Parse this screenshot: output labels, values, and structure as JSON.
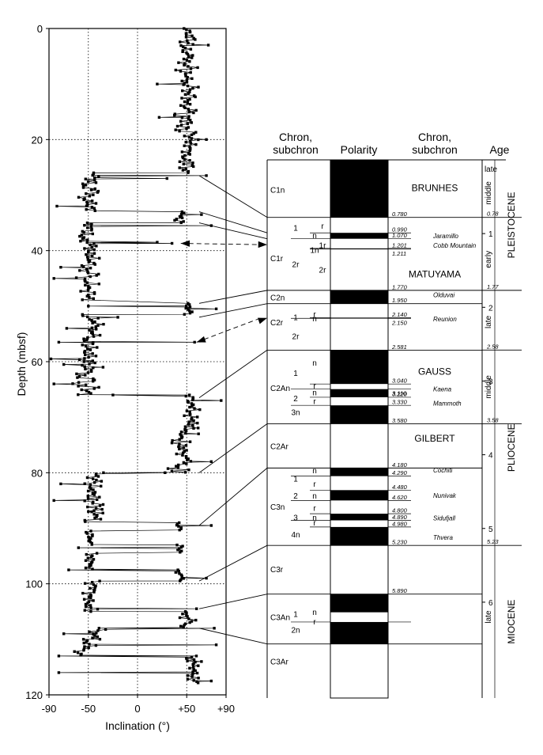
{
  "chart_data": {
    "type": "scatter",
    "xlabel": "Inclination (°)",
    "ylabel": "Depth (mbsf)",
    "xlim": [
      -90,
      90
    ],
    "ylim": [
      0,
      120
    ],
    "y_inverted": true,
    "grid": "dotted",
    "x_ticks": [
      -90,
      -50,
      0,
      50,
      90
    ],
    "x_tick_labels": [
      "-90",
      "-50",
      "0",
      "+50",
      "+90"
    ],
    "y_ticks": [
      0,
      20,
      40,
      60,
      80,
      100,
      120
    ],
    "y_tick_labels": [
      "0",
      "20",
      "40",
      "60",
      "80",
      "100",
      "120"
    ],
    "zones": [
      {
        "top": 0,
        "bottom": 26,
        "mean": 50,
        "spread": 8
      },
      {
        "top": 26,
        "bottom": 33,
        "mean": -48,
        "spread": 8
      },
      {
        "top": 33,
        "bottom": 35,
        "mean": 42,
        "spread": 5
      },
      {
        "top": 35,
        "bottom": 49,
        "mean": -50,
        "spread": 9
      },
      {
        "top": 49.5,
        "bottom": 51.5,
        "mean": 52,
        "spread": 4
      },
      {
        "top": 51.5,
        "bottom": 60,
        "mean": -47,
        "spread": 9
      },
      {
        "top": 60,
        "bottom": 66,
        "mean": -52,
        "spread": 9
      },
      {
        "top": 66,
        "bottom": 72,
        "mean": 55,
        "spread": 6
      },
      {
        "top": 72,
        "bottom": 80,
        "mean": 45,
        "spread": 10
      },
      {
        "top": 80,
        "bottom": 89,
        "mean": -45,
        "spread": 9
      },
      {
        "top": 89,
        "bottom": 90.5,
        "mean": 42,
        "spread": 5
      },
      {
        "top": 90.5,
        "bottom": 93,
        "mean": -50,
        "spread": 6
      },
      {
        "top": 93,
        "bottom": 94.5,
        "mean": 45,
        "spread": 5
      },
      {
        "top": 94.5,
        "bottom": 97.5,
        "mean": -48,
        "spread": 6
      },
      {
        "top": 97.5,
        "bottom": 99.5,
        "mean": 43,
        "spread": 6
      },
      {
        "top": 99.5,
        "bottom": 105,
        "mean": -47,
        "spread": 6
      },
      {
        "top": 105,
        "bottom": 108,
        "mean": 50,
        "spread": 6
      },
      {
        "top": 108,
        "bottom": 110,
        "mean": -40,
        "spread": 12
      },
      {
        "top": 110,
        "bottom": 113,
        "mean": -55,
        "spread": 10
      },
      {
        "top": 113,
        "bottom": 118,
        "mean": 55,
        "spread": 8
      }
    ],
    "outliers": [
      {
        "depth": 3,
        "inclination": 72
      },
      {
        "depth": 10,
        "inclination": 20
      },
      {
        "depth": 16,
        "inclination": 22
      },
      {
        "depth": 20,
        "inclination": 70
      },
      {
        "depth": 26.5,
        "inclination": 70
      },
      {
        "depth": 27,
        "inclination": 30
      },
      {
        "depth": 32,
        "inclination": -82
      },
      {
        "depth": 33.5,
        "inclination": 65
      },
      {
        "depth": 35.5,
        "inclination": 75
      },
      {
        "depth": 38.5,
        "inclination": 20
      },
      {
        "depth": 38.7,
        "inclination": 35
      },
      {
        "depth": 43,
        "inclination": -78
      },
      {
        "depth": 45,
        "inclination": -85
      },
      {
        "depth": 50,
        "inclination": -50
      },
      {
        "depth": 50.5,
        "inclination": 80
      },
      {
        "depth": 52,
        "inclination": -20
      },
      {
        "depth": 54,
        "inclination": -72
      },
      {
        "depth": 56.5,
        "inclination": 58
      },
      {
        "depth": 56.5,
        "inclination": -80
      },
      {
        "depth": 59.5,
        "inclination": -88
      },
      {
        "depth": 60.5,
        "inclination": -75
      },
      {
        "depth": 61,
        "inclination": -35
      },
      {
        "depth": 64,
        "inclination": -85
      },
      {
        "depth": 66,
        "inclination": -25
      },
      {
        "depth": 67,
        "inclination": 85
      },
      {
        "depth": 73,
        "inclination": 62
      },
      {
        "depth": 78,
        "inclination": 75
      },
      {
        "depth": 80,
        "inclination": 28
      },
      {
        "depth": 82,
        "inclination": -78
      },
      {
        "depth": 85,
        "inclination": -85
      },
      {
        "depth": 87,
        "inclination": -50
      },
      {
        "depth": 89.5,
        "inclination": 75
      },
      {
        "depth": 93.5,
        "inclination": -60
      },
      {
        "depth": 97.5,
        "inclination": -70
      },
      {
        "depth": 99,
        "inclination": 70
      },
      {
        "depth": 104.5,
        "inclination": 60
      },
      {
        "depth": 108,
        "inclination": 78
      },
      {
        "depth": 109,
        "inclination": -75
      },
      {
        "depth": 111,
        "inclination": 80
      },
      {
        "depth": 113,
        "inclination": -80
      },
      {
        "depth": 114,
        "inclination": 65
      },
      {
        "depth": 116,
        "inclination": -80
      },
      {
        "depth": 117.5,
        "inclination": 75
      }
    ],
    "arrows": [
      {
        "depth": 38.7,
        "inclination": 44,
        "target_age": 1.15
      },
      {
        "depth": 56.5,
        "inclination": 60,
        "target_age": 2.145
      }
    ]
  },
  "timescale": {
    "header_chron_left": "Chron,\nsubchron",
    "header_polarity": "Polarity",
    "header_chron_right": "Chron,\nsubchron",
    "header_age": "Age",
    "age_min": 0,
    "age_max": 7.3,
    "normal_intervals": [
      [
        0,
        0.78
      ],
      [
        0.99,
        1.07
      ],
      [
        1.201,
        1.211
      ],
      [
        1.77,
        1.95
      ],
      [
        2.14,
        2.15
      ],
      [
        2.581,
        3.04
      ],
      [
        3.11,
        3.22
      ],
      [
        3.33,
        3.58
      ],
      [
        4.18,
        4.29
      ],
      [
        4.48,
        4.62
      ],
      [
        4.8,
        4.89
      ],
      [
        4.98,
        5.23
      ],
      [
        5.89,
        6.137
      ],
      [
        6.269,
        6.567
      ]
    ],
    "chron_rows": [
      {
        "label": "C1n",
        "age": 0.4,
        "col": 0
      },
      {
        "label": "C1r",
        "age": 1.33,
        "col": 0
      },
      {
        "label": "C2n",
        "age": 1.86,
        "col": 0
      },
      {
        "label": "C2r",
        "age": 2.2,
        "col": 0
      },
      {
        "label": "C2An",
        "age": 3.09,
        "col": 0
      },
      {
        "label": "C2Ar",
        "age": 3.88,
        "col": 0
      },
      {
        "label": "C3n",
        "age": 4.7,
        "col": 0
      },
      {
        "label": "C3r",
        "age": 5.55,
        "col": 0
      },
      {
        "label": "C3An",
        "age": 6.2,
        "col": 0
      },
      {
        "label": "C3Ar",
        "age": 6.8,
        "col": 0
      }
    ],
    "sub_rows": [
      {
        "label": "1",
        "age": 0.93,
        "x": "a"
      },
      {
        "label": "r",
        "age": 0.9,
        "x": "c"
      },
      {
        "label": "n",
        "age": 1.03,
        "x": "b"
      },
      {
        "label": "1r",
        "age": 1.165,
        "x": "c"
      },
      {
        "label": "1n",
        "age": 1.23,
        "x": "b"
      },
      {
        "label": "2r",
        "age": 1.42,
        "x": "a"
      },
      {
        "label": "2r",
        "age": 1.5,
        "x": "c"
      },
      {
        "label": "1",
        "age": 2.14,
        "x": "a"
      },
      {
        "label": "r",
        "age": 2.1,
        "x": "b"
      },
      {
        "label": "n",
        "age": 2.16,
        "x": "b"
      },
      {
        "label": "2r",
        "age": 2.4,
        "x": "a"
      },
      {
        "label": "n",
        "age": 2.76,
        "x": "b"
      },
      {
        "label": "1",
        "age": 2.9,
        "x": "a"
      },
      {
        "label": "r",
        "age": 3.07,
        "x": "b"
      },
      {
        "label": "n",
        "age": 3.16,
        "x": "b"
      },
      {
        "label": "2",
        "age": 3.24,
        "x": "a"
      },
      {
        "label": "r",
        "age": 3.28,
        "x": "b"
      },
      {
        "label": "3n",
        "age": 3.43,
        "x": "a"
      },
      {
        "label": "n",
        "age": 4.22,
        "x": "b"
      },
      {
        "label": "1",
        "age": 4.33,
        "x": "a"
      },
      {
        "label": "r",
        "age": 4.4,
        "x": "b"
      },
      {
        "label": "2",
        "age": 4.56,
        "x": "a"
      },
      {
        "label": "n",
        "age": 4.56,
        "x": "b"
      },
      {
        "label": "r",
        "age": 4.73,
        "x": "b"
      },
      {
        "label": "3",
        "age": 4.86,
        "x": "a"
      },
      {
        "label": "n",
        "age": 4.86,
        "x": "b"
      },
      {
        "label": "r",
        "age": 4.93,
        "x": "b"
      },
      {
        "label": "4n",
        "age": 5.09,
        "x": "a"
      },
      {
        "label": "1",
        "age": 6.17,
        "x": "a"
      },
      {
        "label": "n",
        "age": 6.14,
        "x": "b"
      },
      {
        "label": "r",
        "age": 6.27,
        "x": "b"
      },
      {
        "label": "2n",
        "age": 6.38,
        "x": "a"
      }
    ],
    "sub_lines": [
      {
        "age": 0.99,
        "from": "mid"
      },
      {
        "age": 1.07,
        "from": "a"
      },
      {
        "age": 1.201,
        "from": "mid"
      },
      {
        "age": 1.211,
        "from": "mid"
      },
      {
        "age": 2.14,
        "from": "mid"
      },
      {
        "age": 2.15,
        "from": "a"
      },
      {
        "age": 3.04,
        "from": "mid"
      },
      {
        "age": 3.11,
        "from": "a"
      },
      {
        "age": 3.22,
        "from": "mid"
      },
      {
        "age": 3.33,
        "from": "a"
      },
      {
        "age": 4.29,
        "from": "a"
      },
      {
        "age": 4.48,
        "from": "mid"
      },
      {
        "age": 4.62,
        "from": "a"
      },
      {
        "age": 4.8,
        "from": "mid"
      },
      {
        "age": 4.89,
        "from": "a"
      },
      {
        "age": 4.98,
        "from": "mid"
      },
      {
        "age": 6.269,
        "from": "a"
      }
    ],
    "chron_boundaries": [
      0.78,
      1.77,
      1.95,
      2.581,
      3.58,
      4.18,
      5.23,
      5.89,
      6.567
    ],
    "names": [
      {
        "label": "BRUNHES",
        "age": 0.38
      },
      {
        "label": "MATUYAMA",
        "age": 1.55
      },
      {
        "label": "GAUSS",
        "age": 2.87
      },
      {
        "label": "GILBERT",
        "age": 3.78
      }
    ],
    "subchron_names": [
      {
        "label": "Jaramillo",
        "age": 1.03
      },
      {
        "label": "Cobb Mountain",
        "age": 1.16
      },
      {
        "label": "Olduvai",
        "age": 1.83
      },
      {
        "label": "Reunion",
        "age": 2.16
      },
      {
        "label": "Kaena",
        "age": 3.11
      },
      {
        "label": "Mammoth",
        "age": 3.3
      },
      {
        "label": "Cochiti",
        "age": 4.21
      },
      {
        "label": "Nunivak",
        "age": 4.55
      },
      {
        "label": "Sidufjall",
        "age": 4.86
      },
      {
        "label": "Thvera",
        "age": 5.12
      }
    ],
    "age_labels": [
      {
        "label": "0.780",
        "age": 0.78,
        "pos": "above"
      },
      {
        "label": "0.990",
        "age": 0.99,
        "pos": "above"
      },
      {
        "label": "1.070",
        "age": 1.07,
        "pos": "above"
      },
      {
        "label": "1.201",
        "age": 1.201,
        "pos": "above"
      },
      {
        "label": "1.211",
        "age": 1.211,
        "pos": "below"
      },
      {
        "label": "1.770",
        "age": 1.77,
        "pos": "above"
      },
      {
        "label": "1.950",
        "age": 1.95,
        "pos": "above"
      },
      {
        "label": "2.140",
        "age": 2.14,
        "pos": "above"
      },
      {
        "label": "2.150",
        "age": 2.15,
        "pos": "below"
      },
      {
        "label": "2.581",
        "age": 2.581,
        "pos": "above"
      },
      {
        "label": "3.040",
        "age": 3.04,
        "pos": "above"
      },
      {
        "label": "3.110",
        "age": 3.11,
        "pos": "below"
      },
      {
        "label": "3.220",
        "age": 3.22,
        "pos": "above"
      },
      {
        "label": "3.330",
        "age": 3.33,
        "pos": "above"
      },
      {
        "label": "3.580",
        "age": 3.58,
        "pos": "above"
      },
      {
        "label": "4.180",
        "age": 4.18,
        "pos": "above"
      },
      {
        "label": "4.290",
        "age": 4.29,
        "pos": "above"
      },
      {
        "label": "4.480",
        "age": 4.48,
        "pos": "above"
      },
      {
        "label": "4.620",
        "age": 4.62,
        "pos": "above"
      },
      {
        "label": "4.800",
        "age": 4.8,
        "pos": "above"
      },
      {
        "label": "4.890",
        "age": 4.89,
        "pos": "above"
      },
      {
        "label": "4.980",
        "age": 4.98,
        "pos": "above"
      },
      {
        "label": "5.230",
        "age": 5.23,
        "pos": "above"
      },
      {
        "label": "5.890",
        "age": 5.89,
        "pos": "above"
      }
    ],
    "age_ticks": [
      {
        "label": "1",
        "age": 1
      },
      {
        "label": "2",
        "age": 2
      },
      {
        "label": "3",
        "age": 3
      },
      {
        "label": "4",
        "age": 4
      },
      {
        "label": "5",
        "age": 5
      },
      {
        "label": "6",
        "age": 6
      }
    ],
    "age_bounds": [
      {
        "label": "0.78",
        "age": 0.78
      },
      {
        "label": "1.77",
        "age": 1.77
      },
      {
        "label": "2.58",
        "age": 2.58
      },
      {
        "label": "3.58",
        "age": 3.58
      },
      {
        "label": "5.23",
        "age": 5.23
      }
    ],
    "subepochs": [
      {
        "label": "late",
        "age": 0.12
      },
      {
        "label": "middle",
        "age": 0.45
      },
      {
        "label": "early",
        "age": 1.35
      },
      {
        "label": "late",
        "age": 2.2
      },
      {
        "label": "middle",
        "age": 3.08
      },
      {
        "label": "late",
        "age": 6.2
      }
    ],
    "epochs": [
      {
        "label": "PLEISTOCENE",
        "age_top": 0,
        "age_bottom": 1.77
      },
      {
        "label": "PLIOCENE",
        "age_top": 2.58,
        "age_bottom": 5.23
      },
      {
        "label": "MIOCENE",
        "age_top": 5.23,
        "age_bottom": 7.3
      }
    ],
    "ties": [
      {
        "depth": 26.5,
        "age": 0.78
      },
      {
        "depth": 33,
        "age": 0.99
      },
      {
        "depth": 35,
        "age": 1.07
      },
      {
        "depth": 49.5,
        "age": 1.77
      },
      {
        "depth": 52,
        "age": 1.95
      },
      {
        "depth": 66.5,
        "age": 2.581
      },
      {
        "depth": 80,
        "age": 3.58
      },
      {
        "depth": 89.5,
        "age": 4.18
      },
      {
        "depth": 99.5,
        "age": 5.23
      },
      {
        "depth": 104.5,
        "age": 5.89
      },
      {
        "depth": 108,
        "age": 6.567
      }
    ]
  }
}
